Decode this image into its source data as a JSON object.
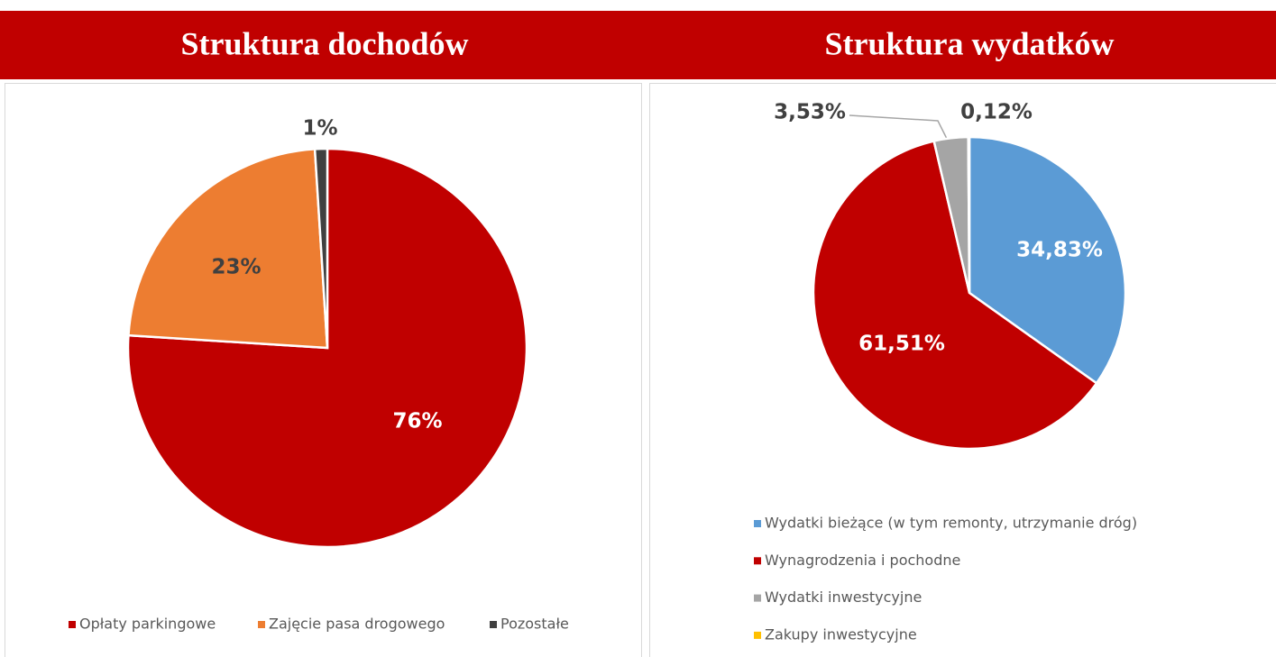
{
  "chart_data": [
    {
      "type": "pie",
      "title": "Struktura dochodów",
      "categories": [
        "Opłaty parkingowe",
        "Zajęcie pasa drogowego",
        "Pozostałe"
      ],
      "values": [
        76,
        23,
        1
      ],
      "value_labels": [
        "76%",
        "23%",
        "1%"
      ],
      "colors": [
        "#c00000",
        "#ed7d31",
        "#404040"
      ],
      "legend": "bottom"
    },
    {
      "type": "pie",
      "title": "Struktura wydatków",
      "categories": [
        "Wydatki bieżące (w tym remonty, utrzymanie dróg)",
        "Wynagrodzenia i pochodne",
        "Wydatki inwestycyjne",
        "Zakupy inwestycyjne"
      ],
      "values": [
        34.83,
        61.51,
        3.53,
        0.12
      ],
      "value_labels": [
        "34,83%",
        "61,51%",
        "3,53%",
        "0,12%"
      ],
      "colors": [
        "#5b9bd5",
        "#c00000",
        "#a5a5a5",
        "#ffc000"
      ],
      "legend": "bottom"
    }
  ]
}
